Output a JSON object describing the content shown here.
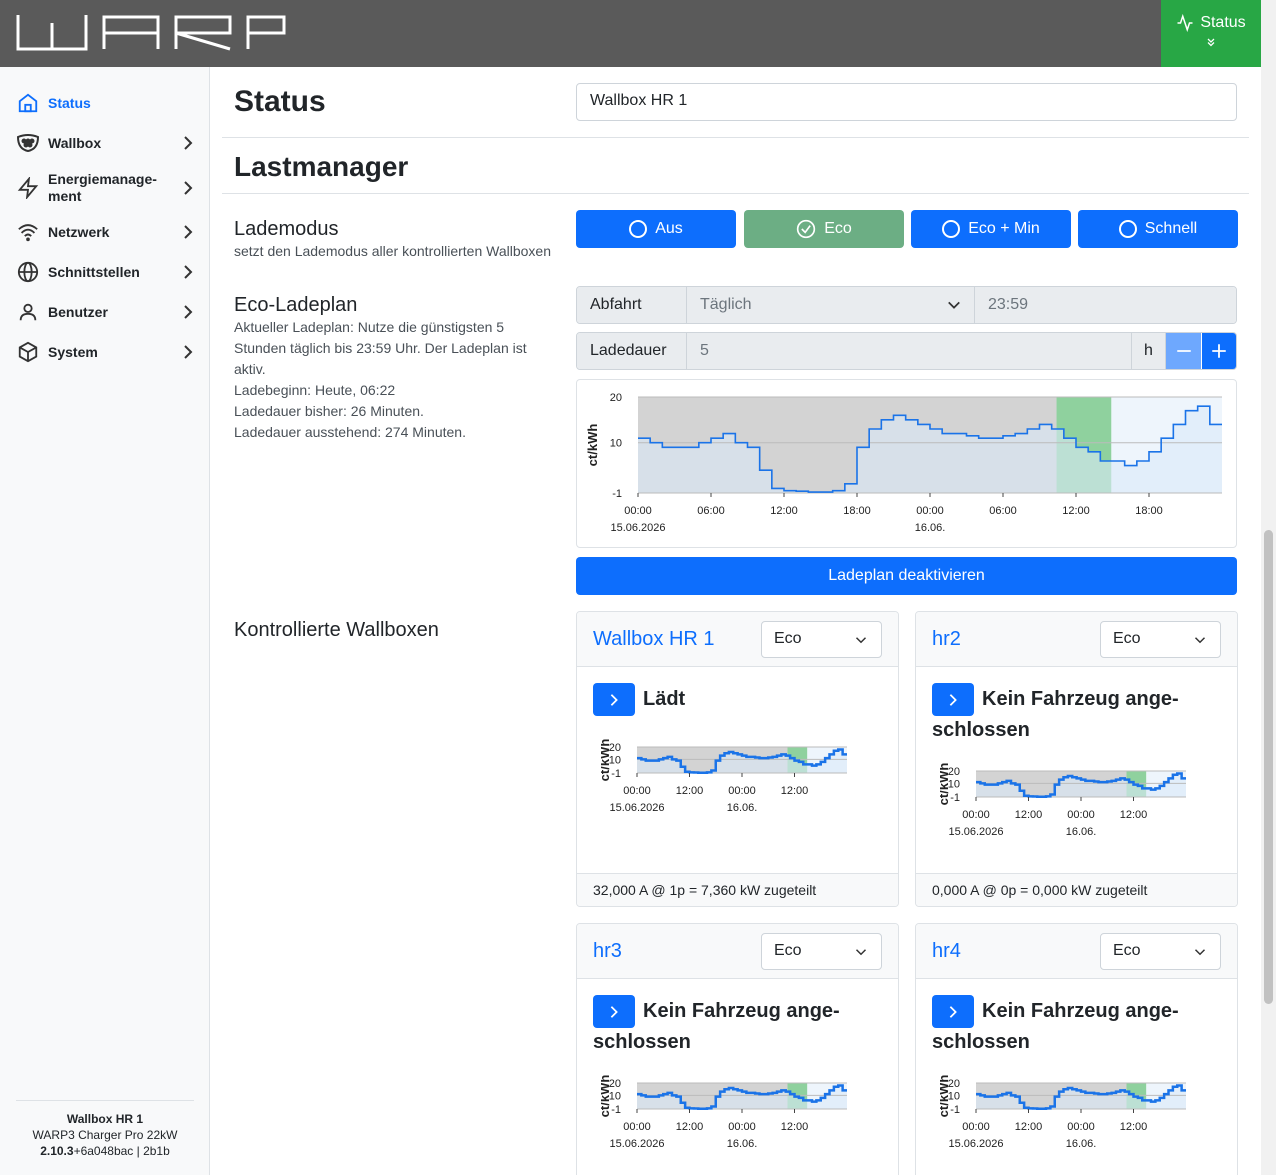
{
  "header": {
    "logo_text": "WARP",
    "status_button": "Status"
  },
  "sidebar": {
    "items": [
      {
        "label": "Status",
        "icon": "home-icon",
        "active": true
      },
      {
        "label": "Wallbox",
        "icon": "wallbox-icon"
      },
      {
        "label": "Energiemanage-\nment",
        "icon": "lightning-icon"
      },
      {
        "label": "Netzwerk",
        "icon": "wifi-icon"
      },
      {
        "label": "Schnittstellen",
        "icon": "globe-icon"
      },
      {
        "label": "Benutzer",
        "icon": "user-icon"
      },
      {
        "label": "System",
        "icon": "box-icon"
      }
    ],
    "footer": {
      "device": "Wallbox HR 1",
      "model": "WARP3 Charger Pro 22kW",
      "version_bold": "2.10.3",
      "version_rest": "+6a048bac | 2b1b"
    }
  },
  "main": {
    "page_title": "Status",
    "device_input": "Wallbox HR 1",
    "section_title": "Lastmanager",
    "lademodus": {
      "label": "Lademodus",
      "description": "setzt den Lademodus aller kontrollierten Wallboxen",
      "buttons": [
        "Aus",
        "Eco",
        "Eco + Min",
        "Schnell"
      ],
      "active": "Eco"
    },
    "eco_plan": {
      "label": "Eco-Ladeplan",
      "lines": [
        "Aktueller Ladeplan: Nutze die günstigsten 5",
        "Stunden täglich bis 23:59 Uhr. Der Ladeplan ist",
        "aktiv.",
        "Ladebeginn: Heute, 06:22",
        "Ladedauer bisher: 26 Minuten.",
        "Ladedauer ausstehend: 274 Minuten."
      ],
      "departure_label": "Abfahrt",
      "departure_value": "Täglich",
      "departure_time": "23:59",
      "duration_label": "Ladedauer",
      "duration_value": "5",
      "duration_unit": "h",
      "deactivate_button": "Ladeplan deaktivieren"
    },
    "controlled_label": "Kontrollierte Wallboxen",
    "wallboxes": [
      {
        "name": "Wallbox HR 1",
        "mode": "Eco",
        "state": "Lädt",
        "allocation": "32,000 A @ 1p = 7,360 kW zugeteilt"
      },
      {
        "name": "hr2",
        "mode": "Eco",
        "state": "Kein Fahrzeug ange-schlossen",
        "allocation": "0,000 A @ 0p = 0,000 kW zugeteilt"
      },
      {
        "name": "hr3",
        "mode": "Eco",
        "state": "Kein Fahrzeug ange-schlossen",
        "allocation": ""
      },
      {
        "name": "hr4",
        "mode": "Eco",
        "state": "Kein Fahrzeug ange-schlossen",
        "allocation": ""
      }
    ]
  },
  "chart_data": {
    "type": "area",
    "ylabel": "ct/kWh",
    "yticks": [
      "20",
      "10",
      "-1"
    ],
    "xticks": [
      "00:00",
      "06:00",
      "12:00",
      "18:00",
      "00:00",
      "06:00",
      "12:00",
      "18:00"
    ],
    "xdates": [
      "15.06.2026",
      "16.06."
    ],
    "mini_xticks": [
      "00:00",
      "12:00",
      "00:00",
      "12:00"
    ],
    "ylim": [
      -1,
      20
    ],
    "x_hours": [
      0,
      1,
      2,
      3,
      4,
      5,
      6,
      7,
      8,
      9,
      10,
      11,
      12,
      13,
      14,
      15,
      16,
      17,
      18,
      19,
      20,
      21,
      22,
      23,
      24,
      25,
      26,
      27,
      28,
      29,
      30,
      31,
      32,
      33,
      34,
      35,
      36,
      37,
      38,
      39,
      40,
      41,
      42,
      43,
      44,
      45,
      46,
      47
    ],
    "values": [
      11,
      10,
      9,
      9,
      9,
      10,
      11,
      12,
      10,
      9,
      4,
      0,
      -0.5,
      -0.6,
      -0.8,
      -0.8,
      -0.5,
      1,
      9,
      13,
      15,
      16,
      15,
      14,
      13,
      12,
      12,
      11.5,
      11,
      11,
      11.5,
      12,
      13,
      14,
      13,
      11,
      9,
      8,
      6,
      6,
      5,
      6,
      8,
      11,
      14,
      17,
      18,
      14
    ],
    "charge_window_hours": [
      34.4,
      38.9
    ],
    "plan_end_hour": 38.9,
    "colors": {
      "line": "#1a73e8",
      "past_fill": "#d3d3d3",
      "plan_fill": "#dbe9f8",
      "charge": "#8fd19e"
    }
  }
}
